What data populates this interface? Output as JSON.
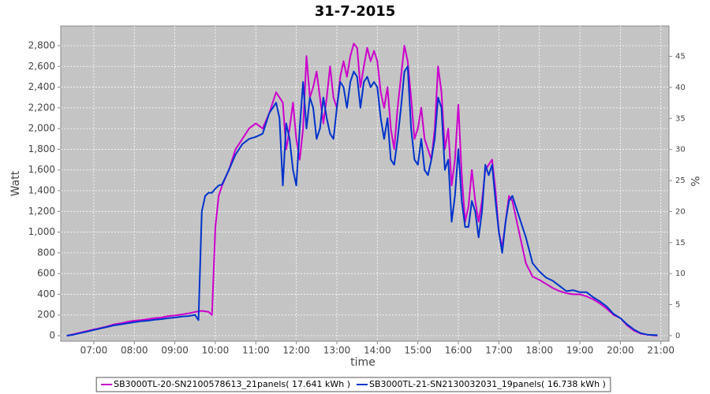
{
  "chart_data": {
    "type": "line",
    "title": "31-7-2015",
    "xlabel": "time",
    "ylabel": "Watt",
    "y2label": "%",
    "xlim": [
      "06:11",
      "21:12"
    ],
    "xticks": [
      "07:00",
      "08:00",
      "09:00",
      "10:00",
      "11:00",
      "12:00",
      "13:00",
      "14:00",
      "15:00",
      "16:00",
      "17:00",
      "18:00",
      "19:00",
      "20:00",
      "21:00"
    ],
    "ylim": [
      -53,
      2990
    ],
    "yticks": [
      0,
      200,
      400,
      600,
      800,
      {
        "value": 1000,
        "label": "1,000"
      },
      {
        "value": 1200,
        "label": "1,200"
      },
      {
        "value": 1400,
        "label": "1,400"
      },
      {
        "value": 1600,
        "label": "1,600"
      },
      {
        "value": 1800,
        "label": "1,800"
      },
      {
        "value": 2000,
        "label": "2,000"
      },
      {
        "value": 2200,
        "label": "2,200"
      },
      {
        "value": 2400,
        "label": "2,400"
      },
      {
        "value": 2600,
        "label": "2,600"
      },
      {
        "value": 2800,
        "label": "2,800"
      }
    ],
    "y2lim": [
      -0.9,
      49.9
    ],
    "y2ticks": [
      0,
      5,
      10,
      15,
      20,
      25,
      30,
      35,
      40,
      45
    ],
    "grid": true,
    "legend": "bottom",
    "series": [
      {
        "name": "SB3000TL-20-SN2100578613_21panels( 17.641 kWh )",
        "color": "#cc00cc",
        "x": [
          "06:20",
          "06:30",
          "06:40",
          "06:50",
          "07:00",
          "07:10",
          "07:20",
          "07:30",
          "07:40",
          "07:50",
          "08:00",
          "08:10",
          "08:20",
          "08:30",
          "08:40",
          "08:50",
          "09:00",
          "09:10",
          "09:20",
          "09:30",
          "09:40",
          "09:50",
          "09:55",
          "10:00",
          "10:05",
          "10:10",
          "10:20",
          "10:30",
          "10:40",
          "10:50",
          "11:00",
          "11:10",
          "11:20",
          "11:30",
          "11:40",
          "11:45",
          "11:50",
          "11:55",
          "12:00",
          "12:05",
          "12:10",
          "12:15",
          "12:20",
          "12:25",
          "12:30",
          "12:35",
          "12:40",
          "12:45",
          "12:50",
          "12:55",
          "13:00",
          "13:05",
          "13:10",
          "13:15",
          "13:20",
          "13:25",
          "13:30",
          "13:35",
          "13:40",
          "13:45",
          "13:50",
          "13:55",
          "14:00",
          "14:05",
          "14:10",
          "14:15",
          "14:20",
          "14:25",
          "14:30",
          "14:35",
          "14:40",
          "14:45",
          "14:50",
          "14:55",
          "15:00",
          "15:05",
          "15:10",
          "15:15",
          "15:20",
          "15:25",
          "15:30",
          "15:35",
          "15:40",
          "15:45",
          "15:50",
          "15:55",
          "16:00",
          "16:05",
          "16:10",
          "16:15",
          "16:20",
          "16:25",
          "16:30",
          "16:35",
          "16:40",
          "16:45",
          "16:50",
          "16:55",
          "17:00",
          "17:05",
          "17:10",
          "17:15",
          "17:20",
          "17:30",
          "17:40",
          "17:50",
          "18:00",
          "18:10",
          "18:20",
          "18:30",
          "18:40",
          "18:50",
          "19:00",
          "19:10",
          "19:20",
          "19:30",
          "19:40",
          "19:50",
          "20:00",
          "20:10",
          "20:20",
          "20:30",
          "20:40",
          "20:55"
        ],
        "values": [
          0,
          15,
          30,
          45,
          60,
          75,
          90,
          110,
          120,
          135,
          145,
          150,
          160,
          170,
          175,
          190,
          195,
          205,
          215,
          230,
          240,
          230,
          200,
          1050,
          1350,
          1450,
          1600,
          1800,
          1900,
          2000,
          2050,
          2000,
          2150,
          2350,
          2250,
          1800,
          2000,
          2250,
          1900,
          1700,
          2000,
          2700,
          2300,
          2400,
          2550,
          2300,
          2050,
          2300,
          2600,
          2300,
          2200,
          2500,
          2650,
          2500,
          2700,
          2820,
          2780,
          2400,
          2600,
          2780,
          2650,
          2750,
          2650,
          2350,
          2200,
          2400,
          2000,
          1800,
          2200,
          2500,
          2800,
          2650,
          2300,
          1900,
          2000,
          2200,
          1900,
          1800,
          1700,
          2000,
          2600,
          2350,
          1800,
          2000,
          1450,
          1700,
          2230,
          1550,
          1100,
          1250,
          1600,
          1300,
          1100,
          1300,
          1600,
          1650,
          1700,
          1400,
          1000,
          850,
          1100,
          1350,
          1300,
          1000,
          700,
          570,
          540,
          500,
          460,
          430,
          410,
          400,
          400,
          380,
          350,
          310,
          260,
          200,
          170,
          100,
          50,
          20,
          10,
          0
        ]
      },
      {
        "name": "SB3000TL-21-SN2130032031_19panels( 16.738 kWh )",
        "color": "#0033cc",
        "x": [
          "06:20",
          "06:30",
          "06:40",
          "06:50",
          "07:00",
          "07:10",
          "07:20",
          "07:30",
          "07:40",
          "07:50",
          "08:00",
          "08:10",
          "08:20",
          "08:30",
          "08:40",
          "08:50",
          "09:00",
          "09:10",
          "09:20",
          "09:30",
          "09:35",
          "09:40",
          "09:45",
          "09:50",
          "09:55",
          "10:00",
          "10:05",
          "10:10",
          "10:20",
          "10:30",
          "10:40",
          "10:50",
          "11:00",
          "11:10",
          "11:20",
          "11:30",
          "11:35",
          "11:40",
          "11:45",
          "11:50",
          "11:55",
          "12:00",
          "12:05",
          "12:10",
          "12:15",
          "12:20",
          "12:25",
          "12:30",
          "12:35",
          "12:40",
          "12:45",
          "12:50",
          "12:55",
          "13:00",
          "13:05",
          "13:10",
          "13:15",
          "13:20",
          "13:25",
          "13:30",
          "13:35",
          "13:40",
          "13:45",
          "13:50",
          "13:55",
          "14:00",
          "14:05",
          "14:10",
          "14:15",
          "14:20",
          "14:25",
          "14:30",
          "14:35",
          "14:40",
          "14:45",
          "14:50",
          "14:55",
          "15:00",
          "15:05",
          "15:10",
          "15:15",
          "15:20",
          "15:25",
          "15:30",
          "15:35",
          "15:40",
          "15:45",
          "15:50",
          "15:55",
          "16:00",
          "16:05",
          "16:10",
          "16:15",
          "16:20",
          "16:25",
          "16:30",
          "16:35",
          "16:40",
          "16:45",
          "16:50",
          "16:55",
          "17:00",
          "17:05",
          "17:10",
          "17:15",
          "17:20",
          "17:30",
          "17:40",
          "17:50",
          "18:00",
          "18:10",
          "18:20",
          "18:30",
          "18:40",
          "18:50",
          "19:00",
          "19:10",
          "19:20",
          "19:30",
          "19:40",
          "19:50",
          "20:00",
          "20:10",
          "20:20",
          "20:30",
          "20:40",
          "20:55"
        ],
        "values": [
          0,
          10,
          25,
          40,
          55,
          70,
          85,
          100,
          110,
          120,
          130,
          140,
          145,
          155,
          160,
          170,
          175,
          185,
          190,
          200,
          150,
          1200,
          1350,
          1380,
          1380,
          1420,
          1450,
          1460,
          1600,
          1750,
          1850,
          1900,
          1920,
          1950,
          2150,
          2250,
          2100,
          1450,
          2050,
          1900,
          1600,
          1450,
          2000,
          2450,
          2000,
          2300,
          2200,
          1900,
          2000,
          2300,
          2100,
          1950,
          1900,
          2200,
          2450,
          2400,
          2200,
          2450,
          2550,
          2500,
          2200,
          2450,
          2500,
          2400,
          2450,
          2400,
          2100,
          1900,
          2100,
          1700,
          1650,
          1900,
          2200,
          2550,
          2600,
          2000,
          1700,
          1650,
          1900,
          1600,
          1550,
          1700,
          1900,
          2300,
          2200,
          1600,
          1700,
          1100,
          1350,
          1800,
          1300,
          1050,
          1050,
          1300,
          1200,
          950,
          1200,
          1650,
          1550,
          1650,
          1300,
          1000,
          800,
          1100,
          1300,
          1350,
          1150,
          950,
          700,
          620,
          560,
          530,
          480,
          430,
          440,
          420,
          420,
          370,
          330,
          280,
          210,
          170,
          110,
          60,
          25,
          10,
          5
        ]
      }
    ]
  }
}
